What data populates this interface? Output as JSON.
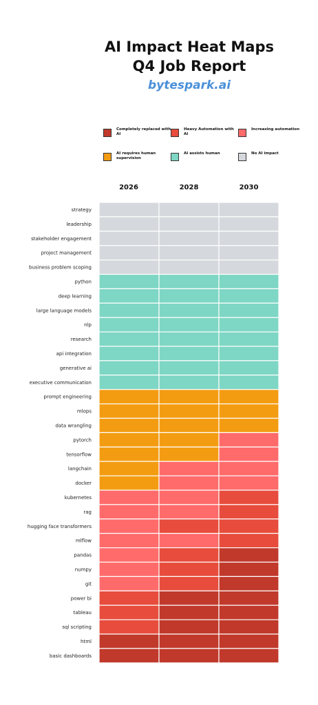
{
  "header": {
    "title_line1": "AI Impact Heat Maps",
    "title_line2": "Q4 Job Report",
    "brand": "bytespark.ai"
  },
  "colors": {
    "brand": "#4a90d9",
    "completely_replaced": "#c0392b",
    "heavy_automation": "#e74c3c",
    "increasing_automation": "#ff6b6b",
    "requires_supervision": "#f39c12",
    "assists_human": "#7ed6c4",
    "no_impact": "#d5d8dc"
  },
  "legend": [
    {
      "key": "completely_replaced",
      "label": "Completely replaced with AI",
      "color": "#c0392b"
    },
    {
      "key": "heavy_automation",
      "label": "Heavy Automation with AI",
      "color": "#e74c3c"
    },
    {
      "key": "increasing_automation",
      "label": "Increasing automation",
      "color": "#ff6b6b"
    },
    {
      "key": "requires_supervision",
      "label": "AI requires human supervision",
      "color": "#f39c12"
    },
    {
      "key": "assists_human",
      "label": "AI assists human",
      "color": "#7ed6c4"
    },
    {
      "key": "no_impact",
      "label": "No AI impact",
      "color": "#d5d8dc"
    }
  ],
  "chart_data": {
    "type": "heatmap",
    "columns": [
      "2026",
      "2028",
      "2030"
    ],
    "rows": [
      {
        "skill": "strategy",
        "values": [
          "no_impact",
          "no_impact",
          "no_impact"
        ]
      },
      {
        "skill": "leadership",
        "values": [
          "no_impact",
          "no_impact",
          "no_impact"
        ]
      },
      {
        "skill": "stakeholder engagement",
        "values": [
          "no_impact",
          "no_impact",
          "no_impact"
        ]
      },
      {
        "skill": "project management",
        "values": [
          "no_impact",
          "no_impact",
          "no_impact"
        ]
      },
      {
        "skill": "business problem scoping",
        "values": [
          "no_impact",
          "no_impact",
          "no_impact"
        ]
      },
      {
        "skill": "python",
        "values": [
          "assists_human",
          "assists_human",
          "assists_human"
        ]
      },
      {
        "skill": "deep learning",
        "values": [
          "assists_human",
          "assists_human",
          "assists_human"
        ]
      },
      {
        "skill": "large language models",
        "values": [
          "assists_human",
          "assists_human",
          "assists_human"
        ]
      },
      {
        "skill": "nlp",
        "values": [
          "assists_human",
          "assists_human",
          "assists_human"
        ]
      },
      {
        "skill": "research",
        "values": [
          "assists_human",
          "assists_human",
          "assists_human"
        ]
      },
      {
        "skill": "api integration",
        "values": [
          "assists_human",
          "assists_human",
          "assists_human"
        ]
      },
      {
        "skill": "generative ai",
        "values": [
          "assists_human",
          "assists_human",
          "assists_human"
        ]
      },
      {
        "skill": "executive communication",
        "values": [
          "assists_human",
          "assists_human",
          "assists_human"
        ]
      },
      {
        "skill": "prompt engineering",
        "values": [
          "requires_supervision",
          "requires_supervision",
          "requires_supervision"
        ]
      },
      {
        "skill": "mlops",
        "values": [
          "requires_supervision",
          "requires_supervision",
          "requires_supervision"
        ]
      },
      {
        "skill": "data wrangling",
        "values": [
          "requires_supervision",
          "requires_supervision",
          "requires_supervision"
        ]
      },
      {
        "skill": "pytorch",
        "values": [
          "requires_supervision",
          "requires_supervision",
          "increasing_automation"
        ]
      },
      {
        "skill": "tensorflow",
        "values": [
          "requires_supervision",
          "requires_supervision",
          "increasing_automation"
        ]
      },
      {
        "skill": "langchain",
        "values": [
          "requires_supervision",
          "increasing_automation",
          "increasing_automation"
        ]
      },
      {
        "skill": "docker",
        "values": [
          "requires_supervision",
          "increasing_automation",
          "increasing_automation"
        ]
      },
      {
        "skill": "kubernetes",
        "values": [
          "increasing_automation",
          "increasing_automation",
          "heavy_automation"
        ]
      },
      {
        "skill": "rag",
        "values": [
          "increasing_automation",
          "increasing_automation",
          "heavy_automation"
        ]
      },
      {
        "skill": "hugging face transformers",
        "values": [
          "increasing_automation",
          "heavy_automation",
          "heavy_automation"
        ]
      },
      {
        "skill": "mlflow",
        "values": [
          "increasing_automation",
          "increasing_automation",
          "heavy_automation"
        ]
      },
      {
        "skill": "pandas",
        "values": [
          "increasing_automation",
          "heavy_automation",
          "completely_replaced"
        ]
      },
      {
        "skill": "numpy",
        "values": [
          "increasing_automation",
          "heavy_automation",
          "completely_replaced"
        ]
      },
      {
        "skill": "git",
        "values": [
          "increasing_automation",
          "heavy_automation",
          "completely_replaced"
        ]
      },
      {
        "skill": "power bi",
        "values": [
          "heavy_automation",
          "completely_replaced",
          "completely_replaced"
        ]
      },
      {
        "skill": "tableau",
        "values": [
          "heavy_automation",
          "completely_replaced",
          "completely_replaced"
        ]
      },
      {
        "skill": "sql scripting",
        "values": [
          "heavy_automation",
          "completely_replaced",
          "completely_replaced"
        ]
      },
      {
        "skill": "html",
        "values": [
          "completely_replaced",
          "completely_replaced",
          "completely_replaced"
        ]
      },
      {
        "skill": "basic dashboards",
        "values": [
          "completely_replaced",
          "completely_replaced",
          "completely_replaced"
        ]
      }
    ]
  }
}
